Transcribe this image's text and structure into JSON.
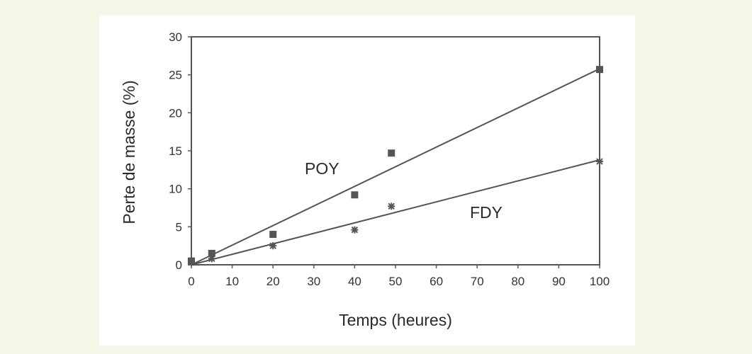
{
  "chart_data": {
    "type": "scatter",
    "title": "",
    "xlabel": "Temps (heures)",
    "ylabel": "Perte de masse (%)",
    "xlim": [
      0,
      100
    ],
    "ylim": [
      0,
      30
    ],
    "xticks": [
      "0",
      "10",
      "20",
      "30",
      "40",
      "50",
      "60",
      "70",
      "80",
      "90",
      "100"
    ],
    "yticks": [
      "0",
      "5",
      "10",
      "15",
      "20",
      "25",
      "30"
    ],
    "grid": false,
    "series": [
      {
        "name": "POY",
        "marker": "square",
        "color": "#555555",
        "points": [
          [
            0,
            0.5
          ],
          [
            5,
            1.5
          ],
          [
            20,
            4
          ],
          [
            40,
            9.2
          ],
          [
            49,
            14.7
          ],
          [
            100,
            25.7
          ]
        ],
        "fit": [
          [
            0,
            0
          ],
          [
            100,
            25.8
          ]
        ]
      },
      {
        "name": "FDY",
        "marker": "star",
        "color": "#555555",
        "points": [
          [
            0,
            0.3
          ],
          [
            5,
            0.8
          ],
          [
            20,
            2.5
          ],
          [
            40,
            4.6
          ],
          [
            49,
            7.7
          ],
          [
            100,
            13.6
          ]
        ],
        "fit": [
          [
            0,
            0
          ],
          [
            100,
            13.8
          ]
        ]
      }
    ]
  }
}
